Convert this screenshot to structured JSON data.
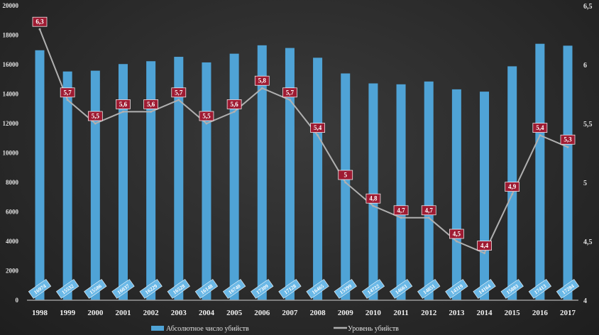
{
  "chart_data": {
    "type": "bar",
    "title": "",
    "categories": [
      "1998",
      "1999",
      "2000",
      "2001",
      "2002",
      "2003",
      "2004",
      "2005",
      "2006",
      "2007",
      "2008",
      "2009",
      "2010",
      "2011",
      "2012",
      "2013",
      "2014",
      "2015",
      "2016",
      "2017"
    ],
    "series": [
      {
        "name": "Абсолютное число убийств",
        "type": "bar",
        "axis": "left",
        "color": "#4fa3d6",
        "values": [
          16974,
          15532,
          15586,
          16037,
          16229,
          16528,
          16148,
          16740,
          17309,
          17128,
          16465,
          15399,
          14722,
          14661,
          14851,
          14319,
          14164,
          15883,
          17413,
          17284
        ]
      },
      {
        "name": "Уровень убийств",
        "type": "line",
        "axis": "right",
        "color": "#b0b0b0",
        "label_color": "#9e1b32",
        "values": [
          6.3,
          5.7,
          5.5,
          5.6,
          5.6,
          5.7,
          5.5,
          5.6,
          5.8,
          5.7,
          5.4,
          5,
          4.8,
          4.7,
          4.7,
          4.5,
          4.4,
          4.9,
          5.4,
          5.3
        ],
        "labels": [
          "6,3",
          "5,7",
          "5,5",
          "5,6",
          "5,6",
          "5,7",
          "5,5",
          "5,6",
          "5,8",
          "5,7",
          "5,4",
          "5",
          "4,8",
          "4,7",
          "4,7",
          "4,5",
          "4,4",
          "4,9",
          "5,4",
          "5,3"
        ]
      }
    ],
    "y_left": {
      "lim": [
        0,
        20000
      ],
      "ticks": [
        "0",
        "2000",
        "4000",
        "6000",
        "8000",
        "10000",
        "12000",
        "14000",
        "16000",
        "18000",
        "20000"
      ]
    },
    "y_right": {
      "lim": [
        4,
        6.5
      ],
      "ticks": [
        "4",
        "4,5",
        "5",
        "5,5",
        "6",
        "6,5"
      ]
    },
    "grid": false,
    "legend": "bottom"
  }
}
